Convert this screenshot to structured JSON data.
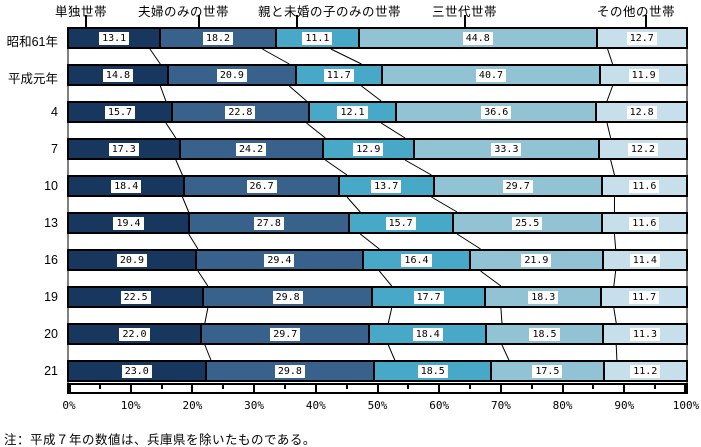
{
  "chart_data": {
    "type": "bar",
    "stacked": true,
    "orientation": "horizontal",
    "unit": "%",
    "title": "",
    "categories": [
      "昭和61年",
      "平成元年",
      "4",
      "7",
      "10",
      "13",
      "16",
      "19",
      "20",
      "21"
    ],
    "series": [
      {
        "name": "単独世帯",
        "color": "#17375E",
        "values": [
          13.1,
          14.8,
          15.7,
          17.3,
          18.4,
          19.4,
          20.9,
          22.5,
          22.0,
          23.0
        ]
      },
      {
        "name": "夫婦のみの世帯",
        "color": "#38618C",
        "values": [
          18.2,
          20.9,
          22.8,
          24.2,
          26.7,
          27.8,
          29.4,
          29.8,
          29.7,
          29.8
        ]
      },
      {
        "name": "親と未婚の子のみの世帯",
        "color": "#47A8C8",
        "values": [
          11.1,
          11.7,
          12.1,
          12.9,
          13.7,
          15.7,
          16.4,
          17.7,
          18.4,
          18.5
        ]
      },
      {
        "name": "三世代世帯",
        "color": "#92C3D5",
        "values": [
          44.8,
          40.7,
          36.6,
          33.3,
          29.7,
          25.5,
          21.9,
          18.3,
          18.5,
          17.5
        ]
      },
      {
        "name": "その他の世帯",
        "color": "#C6DFEA",
        "values": [
          12.7,
          11.9,
          12.8,
          12.2,
          11.6,
          11.6,
          11.4,
          11.7,
          11.3,
          11.2
        ]
      }
    ],
    "x_axis": {
      "min": 0,
      "max": 100,
      "tick_labels": [
        "0%",
        "10%",
        "20%",
        "30%",
        "40%",
        "50%",
        "60%",
        "70%",
        "80%",
        "90%",
        "100%"
      ],
      "minor_tick_step": 5
    },
    "value_labels": true,
    "legend_position": "top",
    "connector_lines": true,
    "border_color": "#000000",
    "background_color": "#FFFFFF"
  },
  "note": "注：平成７年の数値は、兵庫県を除いたものである。"
}
